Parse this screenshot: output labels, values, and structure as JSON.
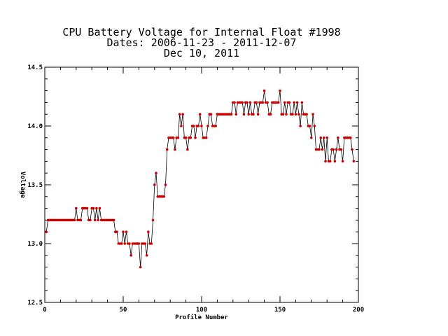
{
  "chart_data": {
    "type": "line",
    "title_lines": [
      "CPU Battery Voltage for Internal Float #1998",
      "Dates:  2006-11-23 -  2011-12-07",
      "Dec 10, 2011"
    ],
    "xlabel": "Profile Number",
    "ylabel": "Voltage",
    "xlim": [
      0,
      200
    ],
    "ylim": [
      12.5,
      14.5
    ],
    "x_ticks": [
      "0",
      "50",
      "100",
      "150",
      "200"
    ],
    "y_ticks": [
      "12.5",
      "13.0",
      "13.5",
      "14.0",
      "14.5"
    ],
    "grid": false,
    "marker_color": "#cc0000",
    "line_color": "#000000",
    "series": [
      {
        "x_start": 1,
        "values": [
          13.1,
          13.2,
          13.2,
          13.2,
          13.2,
          13.2,
          13.2,
          13.2,
          13.2,
          13.2,
          13.2,
          13.2,
          13.2,
          13.2,
          13.2,
          13.2,
          13.2,
          13.2,
          13.2,
          13.3,
          13.2,
          13.2,
          13.2,
          13.3,
          13.3,
          13.3,
          13.3,
          13.2,
          13.2,
          13.3,
          13.3,
          13.2,
          13.3,
          13.2,
          13.3,
          13.2,
          13.2,
          13.2,
          13.2,
          13.2,
          13.2,
          13.2,
          13.2,
          13.2,
          13.1,
          13.1,
          13.0,
          13.0,
          13.0,
          13.1,
          13.0,
          13.1,
          13.0,
          13.0,
          12.9,
          13.0,
          13.0,
          13.0,
          13.0,
          13.0,
          12.8,
          13.0,
          13.0,
          13.0,
          12.9,
          13.1,
          13.0,
          13.0,
          13.2,
          13.5,
          13.6,
          13.4,
          13.4,
          13.4,
          13.4,
          13.4,
          13.5,
          13.8,
          13.9,
          13.9,
          13.9,
          13.9,
          13.8,
          13.9,
          13.9,
          14.1,
          14.0,
          14.1,
          13.9,
          13.9,
          13.8,
          13.9,
          13.9,
          14.0,
          14.0,
          13.9,
          14.0,
          14.0,
          14.1,
          14.0,
          13.9,
          13.9,
          13.9,
          14.0,
          14.1,
          14.1,
          14.0,
          14.0,
          14.0,
          14.1,
          14.1,
          14.1,
          14.1,
          14.1,
          14.1,
          14.1,
          14.1,
          14.1,
          14.1,
          14.2,
          14.2,
          14.1,
          14.2,
          14.2,
          14.2,
          14.2,
          14.1,
          14.2,
          14.2,
          14.1,
          14.2,
          14.1,
          14.1,
          14.2,
          14.2,
          14.1,
          14.2,
          14.2,
          14.2,
          14.3,
          14.2,
          14.2,
          14.1,
          14.1,
          14.2,
          14.2,
          14.2,
          14.2,
          14.2,
          14.3,
          14.1,
          14.1,
          14.2,
          14.1,
          14.2,
          14.2,
          14.1,
          14.1,
          14.2,
          14.1,
          14.2,
          14.1,
          14.0,
          14.2,
          14.1,
          14.1,
          14.1,
          14.0,
          14.0,
          13.9,
          14.1,
          14.0,
          13.8,
          13.8,
          13.8,
          13.9,
          13.8,
          13.9,
          13.7,
          13.9,
          13.7,
          13.7,
          13.8,
          13.8,
          13.7,
          13.8,
          13.9,
          13.8,
          13.8,
          13.7,
          13.9,
          13.9,
          13.9,
          13.9,
          13.9,
          13.8,
          13.7
        ]
      }
    ]
  }
}
